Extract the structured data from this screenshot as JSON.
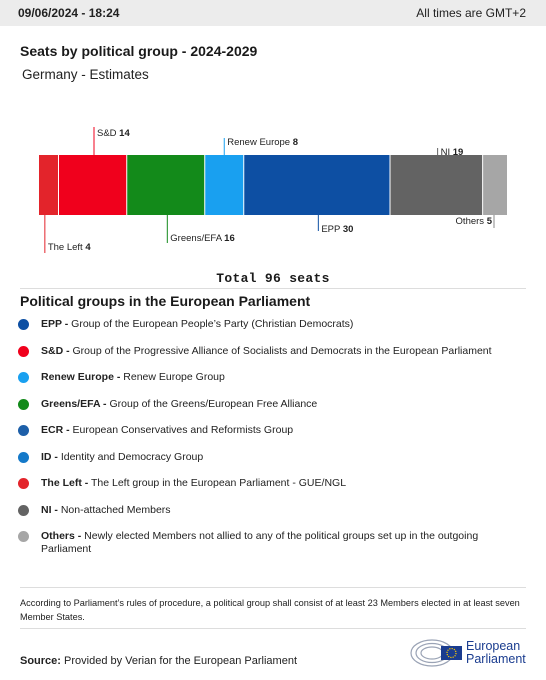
{
  "header": {
    "timestamp": "09/06/2024 - 18:24",
    "timezone_note": "All times are GMT+2"
  },
  "title": "Seats by political group - 2024-2029",
  "subtitle": "Germany - Estimates",
  "chart_data": {
    "type": "bar",
    "orientation": "horizontal-stacked",
    "total_label": "Total 96 seats",
    "total": 96,
    "segments": [
      {
        "name": "The Left",
        "value": 4,
        "color": "#e3242b",
        "label_pos": "bottom"
      },
      {
        "name": "S&D",
        "value": 14,
        "color": "#f0001c",
        "label_pos": "top"
      },
      {
        "name": "Greens/EFA",
        "value": 16,
        "color": "#138a1a",
        "label_pos": "bottom"
      },
      {
        "name": "Renew Europe",
        "value": 8,
        "color": "#19a0f0",
        "label_pos": "top"
      },
      {
        "name": "EPP",
        "value": 30,
        "color": "#0d4fa3",
        "label_pos": "bottom"
      },
      {
        "name": "NI",
        "value": 19,
        "color": "#636363",
        "label_pos": "top"
      },
      {
        "name": "Others",
        "value": 5,
        "color": "#a6a6a6",
        "label_pos": "bottom"
      }
    ]
  },
  "legend": {
    "title": "Political groups in the European Parliament",
    "items": [
      {
        "abbr": "EPP -",
        "desc": "Group of the European People’s Party (Christian Democrats)",
        "color": "#0d4fa3"
      },
      {
        "abbr": "S&D -",
        "desc": "Group of the Progressive Alliance of Socialists and Democrats in the European Parliament",
        "color": "#f0001c"
      },
      {
        "abbr": "Renew Europe -",
        "desc": "Renew Europe Group",
        "color": "#19a0f0"
      },
      {
        "abbr": "Greens/EFA -",
        "desc": "Group of the Greens/European Free Alliance",
        "color": "#138a1a"
      },
      {
        "abbr": "ECR -",
        "desc": "European Conservatives and Reformists Group",
        "color": "#1d5fa8"
      },
      {
        "abbr": "ID -",
        "desc": "Identity and Democracy Group",
        "color": "#1479c9"
      },
      {
        "abbr": "The Left -",
        "desc": "The Left group in the European Parliament - GUE/NGL",
        "color": "#e3242b"
      },
      {
        "abbr": "NI -",
        "desc": "Non-attached Members",
        "color": "#636363"
      },
      {
        "abbr": "Others -",
        "desc": "Newly elected Members not allied to any of the political groups set up in the outgoing Parliament",
        "color": "#a6a6a6"
      }
    ]
  },
  "note": "According to Parliament’s rules of procedure, a political group shall consist of at least 23 Members elected in at least seven Member States.",
  "source": {
    "label": "Source:",
    "text": "Provided by Verian for the European Parliament"
  },
  "logo": {
    "line1": "European",
    "line2": "Parliament"
  }
}
